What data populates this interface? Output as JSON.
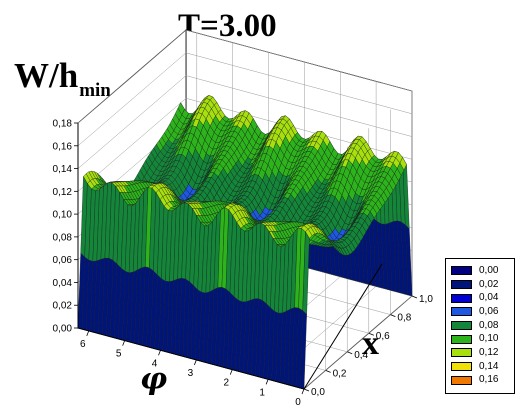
{
  "title": "T=3.00",
  "chart_data": {
    "type": "surface3d",
    "title": "T=3.00",
    "zlabel": "W/h",
    "zlabel_sub": "min",
    "xlabel": "x",
    "ylabel": "φ",
    "x_ticks": [
      "0,0",
      "0,2",
      "0,4",
      "0,6",
      "0,8",
      "1,0"
    ],
    "phi_ticks": [
      "0",
      "1",
      "2",
      "3",
      "4",
      "5",
      "6"
    ],
    "z_ticks": [
      "0,00",
      "0,02",
      "0,04",
      "0,06",
      "0,08",
      "0,10",
      "0,12",
      "0,14",
      "0,16",
      "0,18"
    ],
    "x_range": [
      0,
      1
    ],
    "phi_range": [
      0,
      6.3
    ],
    "z_range": [
      0,
      0.18
    ],
    "grid": true,
    "surface": {
      "x_samples": [
        0.0,
        0.1,
        0.2,
        0.3,
        0.4,
        0.5,
        0.6,
        0.7,
        0.8,
        0.9,
        1.0
      ],
      "plateau_x": [
        0.05,
        0.95
      ],
      "base_level": 0.085,
      "cross_wave_amplitude": 0.04,
      "phi_ripple_amplitude": 0.008,
      "phi_ripple_cycles": 6,
      "peak_max": 0.17,
      "edge_value": 0.0
    },
    "legend": {
      "position": "bottom-right",
      "entries": [
        {
          "label": "0,00",
          "color": "#000080"
        },
        {
          "label": "0,02",
          "color": "#00157a"
        },
        {
          "label": "0,04",
          "color": "#0000d0"
        },
        {
          "label": "0,06",
          "color": "#1f58e0"
        },
        {
          "label": "0,08",
          "color": "#14863a"
        },
        {
          "label": "0,10",
          "color": "#2db41c"
        },
        {
          "label": "0,12",
          "color": "#a8e00e"
        },
        {
          "label": "0,14",
          "color": "#f0e00a"
        },
        {
          "label": "0,16",
          "color": "#f07800"
        }
      ]
    }
  }
}
